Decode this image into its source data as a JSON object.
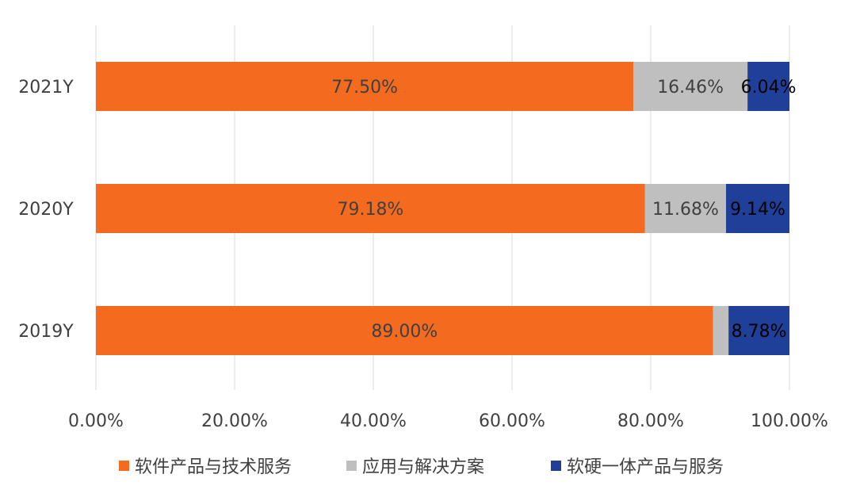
{
  "chart_data": {
    "type": "bar",
    "orientation": "horizontal",
    "stacked": true,
    "categories": [
      "2021Y",
      "2020Y",
      "2019Y"
    ],
    "series": [
      {
        "name": "软件产品与技术服务",
        "values": [
          77.5,
          79.18,
          89.0
        ],
        "color": "#F46A1F",
        "labels": [
          "77.50%",
          "79.18%",
          "89.00%"
        ],
        "label_color": "#404040"
      },
      {
        "name": "应用与解决方案",
        "values": [
          16.46,
          11.68,
          2.22
        ],
        "color": "#BFBFBF",
        "labels": [
          "16.46%",
          "11.68%",
          ""
        ],
        "label_color": "#404040"
      },
      {
        "name": "软硬一体产品与服务",
        "values": [
          6.04,
          9.14,
          8.78
        ],
        "color": "#1F3F99",
        "labels": [
          "6.04%",
          "9.14%",
          "8.78%"
        ],
        "label_color": "#000000"
      }
    ],
    "xlim": [
      0,
      100
    ],
    "xticks": [
      "0.00%",
      "20.00%",
      "40.00%",
      "60.00%",
      "80.00%",
      "100.00%"
    ],
    "grid": true,
    "legend": "bottom"
  }
}
